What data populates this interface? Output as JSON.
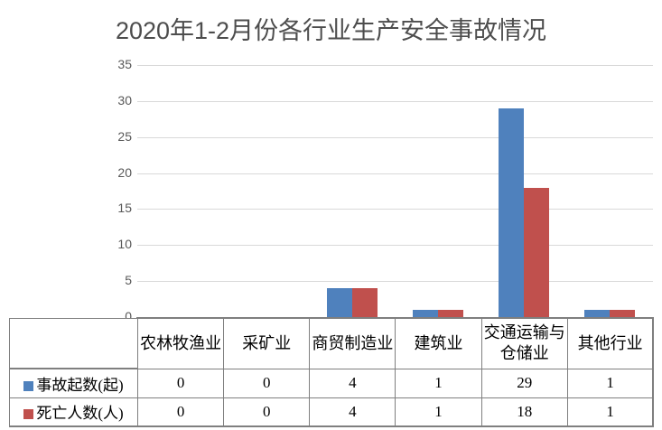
{
  "chart_data": {
    "type": "bar",
    "title": "2020年1-2月份各行业生产安全事故情况",
    "categories": [
      "农林牧渔业",
      "采矿业",
      "商贸制造业",
      "建筑业",
      "交通运输与仓储业",
      "其他行业"
    ],
    "series": [
      {
        "name": "事故起数(起)",
        "color": "#4f81bd",
        "values": [
          0,
          0,
          4,
          1,
          29,
          1
        ]
      },
      {
        "name": "死亡人数(人)",
        "color": "#c0504d",
        "values": [
          0,
          0,
          4,
          1,
          18,
          1
        ]
      }
    ],
    "xlabel": "",
    "ylabel": "",
    "ylim": [
      0,
      35
    ],
    "yticks": [
      0,
      5,
      10,
      15,
      20,
      25,
      30,
      35
    ],
    "grid": true,
    "legend_position": "left-of-data-table",
    "data_table_shown": true,
    "colors": {
      "background": "#ffffff",
      "gridline": "#d9d9d9",
      "axis": "#7f7f7f",
      "title_text": "#4d4d4d",
      "tick_text": "#595959",
      "table_border": "#7f7f7f",
      "table_text": "#000000"
    }
  }
}
